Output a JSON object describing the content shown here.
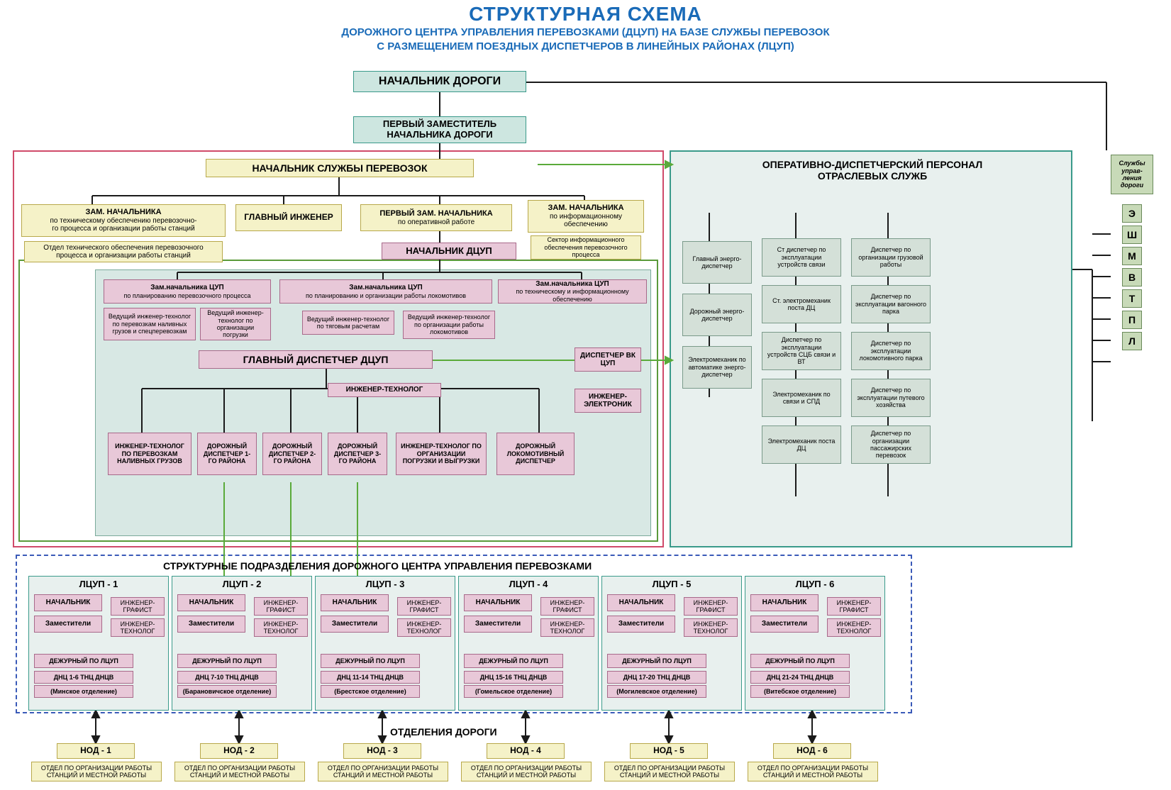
{
  "title": "СТРУКТУРНАЯ СХЕМА",
  "subtitle1": "ДОРОЖНОГО ЦЕНТРА УПРАВЛЕНИЯ ПЕРЕВОЗКАМИ (ДЦУП) НА БАЗЕ СЛУЖБЫ ПЕРЕВОЗОК",
  "subtitle2": "С РАЗМЕЩЕНИЕМ ПОЕЗДНЫХ ДИСПЕТЧЕРОВ В ЛИНЕЙНЫХ РАЙОНАХ (ЛЦУП)",
  "colors": {
    "title": "#1a6bb8",
    "box_cyan_bg": "#cde6e0",
    "box_cyan_border": "#3a9a8a",
    "box_yellow_bg": "#f5f2c8",
    "box_yellow_border": "#b8a84a",
    "box_pink_bg": "#e8c8d8",
    "box_pink_border": "#a8698a",
    "box_lblue_bg": "#d4e0d8",
    "box_lblue_border": "#7a9a8a",
    "box_green_bg": "#c8dab8",
    "box_green_border": "#6a8a5a",
    "frame_red": "#d04a6a",
    "frame_green": "#5a9a3a",
    "frame_bluedash": "#3a5ab8",
    "line_black": "#1a1a1a",
    "line_green": "#5aaa3a"
  },
  "top": {
    "head": "НАЧАЛЬНИК ДОРОГИ",
    "deputy1": "ПЕРВЫЙ ЗАМЕСТИТЕЛЬ",
    "deputy2": "НАЧАЛЬНИКА ДОРОГИ",
    "service_head": "НАЧАЛЬНИК СЛУЖБЫ ПЕРЕВОЗОК"
  },
  "row2": {
    "zam1a": "ЗАМ. НАЧАЛЬНИКА",
    "zam1b": "по техническому обеспечению перевозочно-",
    "zam1c": "го процесса и организации работы станций",
    "zam1_sub": "Отдел технического обеспечения перевозочного процесса и организации работы станций",
    "chief_eng": "ГЛАВНЫЙ ИНЖЕНЕР",
    "first_zam_a": "ПЕРВЫЙ ЗАМ. НАЧАЛЬНИКА",
    "first_zam_b": "по оперативной работе",
    "zam2a": "ЗАМ. НАЧАЛЬНИКА",
    "zam2b": "по информационному",
    "zam2c": "обеспечению",
    "zam2_sub": "Сектор информационного обеспечения перевозочного процесса",
    "dcup_head": "НАЧАЛЬНИК ДЦУП"
  },
  "row3": {
    "zam_cup1a": "Зам.начальника ЦУП",
    "zam_cup1b": "по планированию перевозочного процесса",
    "zam_cup2a": "Зам.начальника ЦУП",
    "zam_cup2b": "по планированию и организации работы локомотивов",
    "zam_cup3a": "Зам.начальника ЦУП",
    "zam_cup3b": "по техническому и информационному обеспечению",
    "ved1": "Ведущий инженер-технолог по перевозкам наливных грузов и спецперевозкам",
    "ved2": "Ведущий инженер-технолог по организации погрузки",
    "ved3": "Ведущий инженер-технолог по тяговым расчетам",
    "ved4": "Ведущий инженер-технолог по организации работы локомотивов"
  },
  "row4": {
    "main_disp": "ГЛАВНЫЙ ДИСПЕТЧЕР ДЦУП",
    "eng_tech": "ИНЖЕНЕР-ТЕХНОЛОГ",
    "disp_vk": "ДИСПЕТЧЕР ВК ЦУП",
    "eng_el": "ИНЖЕНЕР-ЭЛЕКТРОНИК"
  },
  "row5": [
    "ИНЖЕНЕР-ТЕХНОЛОГ ПО ПЕРЕВОЗКАМ НАЛИВНЫХ ГРУЗОВ",
    "ДОРОЖНЫЙ ДИСПЕТЧЕР 1-ГО РАЙОНА",
    "ДОРОЖНЫЙ ДИСПЕТЧЕР 2-ГО РАЙОНА",
    "ДОРОЖНЫЙ ДИСПЕТЧЕР 3-ГО РАЙОНА",
    "ИНЖЕНЕР-ТЕХНОЛОГ ПО ОРГАНИЗАЦИИ ПОГРУЗКИ И ВЫГРУЗКИ",
    "ДОРОЖНЫЙ ЛОКОМОТИВНЫЙ ДИСПЕТЧЕР"
  ],
  "lcup_header": "СТРУКТУРНЫЕ ПОДРАЗДЕЛЕНИЯ ДОРОЖНОГО ЦЕНТРА УПРАВЛЕНИЯ ПЕРЕВОЗКАМИ",
  "lcup_common": {
    "head": "НАЧАЛЬНИК",
    "dep": "Заместители",
    "eng_graf": "ИНЖЕНЕР-ГРАФИСТ",
    "eng_tech": "ИНЖЕНЕР-ТЕХНОЛОГ",
    "duty": "ДЕЖУРНЫЙ ПО ЛЦУП"
  },
  "lcups": [
    {
      "title": "ЛЦУП - 1",
      "dnc": "ДНЦ 1-6 ТНЦ ДНЦВ",
      "otd": "(Минское отделение)"
    },
    {
      "title": "ЛЦУП - 2",
      "dnc": "ДНЦ 7-10 ТНЦ ДНЦВ",
      "otd": "(Барановичское отделение)"
    },
    {
      "title": "ЛЦУП - 3",
      "dnc": "ДНЦ 11-14 ТНЦ ДНЦВ",
      "otd": "(Брестское отделение)"
    },
    {
      "title": "ЛЦУП - 4",
      "dnc": "ДНЦ 15-16 ТНЦ ДНЦВ",
      "otd": "(Гомельское отделение)"
    },
    {
      "title": "ЛЦУП - 5",
      "dnc": "ДНЦ 17-20 ТНЦ ДНЦВ",
      "otd": "(Могилевское отделение)"
    },
    {
      "title": "ЛЦУП - 6",
      "dnc": "ДНЦ 21-24 ТНЦ ДНЦВ",
      "otd": "(Витебское отделение)"
    }
  ],
  "otd_header": "ОТДЕЛЕНИЯ ДОРОГИ",
  "nods": [
    "НОД - 1",
    "НОД - 2",
    "НОД - 3",
    "НОД - 4",
    "НОД - 5",
    "НОД - 6"
  ],
  "nod_sub": "ОТДЕЛ ПО ОРГАНИЗАЦИИ РАБОТЫ СТАНЦИЙ И МЕСТНОЙ РАБОТЫ",
  "right": {
    "header1": "ОПЕРАТИВНО-ДИСПЕТЧЕРСКИЙ ПЕРСОНАЛ",
    "header2": "ОТРАСЛЕВЫХ СЛУЖБ",
    "col1": [
      "Главный энерго-диспетчер",
      "Дорожный энерго-диспетчер",
      "Электромеханик по автоматике энерго-диспетчер"
    ],
    "col2": [
      "Ст диспетчер по эксплуатации устройств связи",
      "Ст. электромеханик поста ДЦ",
      "Диспетчер по эксплуатации устройств СЦБ связи и ВТ",
      "Электромеханик по связи и СПД",
      "Электромеханик поста ДЦ"
    ],
    "col3": [
      "Диспетчер по организации грузовой работы",
      "Диспетчер по эксплуатации вагонного парка",
      "Диспетчер по эксплуатации локомотивного парка",
      "Диспетчер по эксплуатации путевого хозяйства",
      "Диспетчер по организации пассажирских перевозок"
    ]
  },
  "sidebar": {
    "label": "Службы управ-ления дороги",
    "letters": [
      "Э",
      "Ш",
      "М",
      "В",
      "Т",
      "П",
      "Л"
    ]
  }
}
